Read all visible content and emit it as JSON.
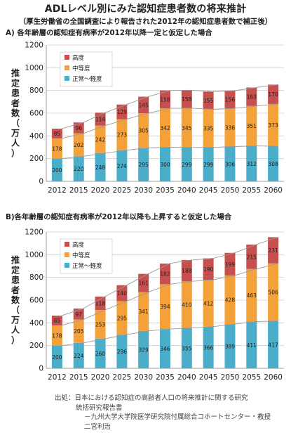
{
  "header": {
    "title": "ADLレベル別にみた認知症患者数の将来推計",
    "subtitle": "（厚生労働省の全国調査により報告された2012年の認知症患者数で補正後）"
  },
  "source": {
    "line1": "出処：日本における認知症の高齢者人口の将来推計に関する研究",
    "line2": "統括研究報告書",
    "line3": "－九州大学大学院医学研究院付属総合コホートセンター・教授",
    "line4": "二宮利治"
  },
  "colors": {
    "mild": "#4aaecb",
    "moderate": "#f5a13a",
    "severe": "#c7504f",
    "grid": "#cfcfcf"
  },
  "chart_data": [
    {
      "type": "bar",
      "stacked": true,
      "section_label": "A) 各年齢層の認知症有病率が2012年以降一定と仮定した場合",
      "ylabel": "推定患者数（万人）",
      "ylim": [
        0,
        1200
      ],
      "yticks": [
        0,
        200,
        400,
        600,
        800,
        1000,
        1200
      ],
      "grid": true,
      "legend_position": "top-left",
      "categories": [
        "2012",
        "2015",
        "2020",
        "2025",
        "2030",
        "2035",
        "2040",
        "2045",
        "2050",
        "2055",
        "2060"
      ],
      "series": [
        {
          "name": "正常～軽度",
          "color": "#4aaecb",
          "values": [
            200,
            220,
            248,
            274,
            295,
            300,
            299,
            299,
            306,
            312,
            308
          ]
        },
        {
          "name": "中等度",
          "color": "#f5a13a",
          "values": [
            178,
            202,
            242,
            273,
            305,
            342,
            345,
            335,
            336,
            351,
            373
          ]
        },
        {
          "name": "高度",
          "color": "#c7504f",
          "values": [
            85,
            96,
            114,
            129,
            145,
            158,
            158,
            155,
            156,
            163,
            170
          ]
        }
      ]
    },
    {
      "type": "bar",
      "stacked": true,
      "section_label": "B)各年齢層の認知症有病率が2012年以降も上昇すると仮定した場合",
      "ylabel": "推定患者数（万人）",
      "ylim": [
        0,
        1200
      ],
      "yticks": [
        0,
        200,
        400,
        600,
        800,
        1000,
        1200
      ],
      "grid": true,
      "legend_position": "top-left",
      "categories": [
        "2012",
        "2015",
        "2020",
        "2025",
        "2030",
        "2035",
        "2040",
        "2045",
        "2050",
        "2055",
        "2060"
      ],
      "series": [
        {
          "name": "正常～軽度",
          "color": "#4aaecb",
          "values": [
            200,
            224,
            260,
            296,
            329,
            346,
            355,
            366,
            389,
            411,
            417
          ]
        },
        {
          "name": "中等度",
          "color": "#f5a13a",
          "values": [
            178,
            205,
            253,
            295,
            341,
            394,
            410,
            412,
            428,
            463,
            506
          ]
        },
        {
          "name": "高度",
          "color": "#c7504f",
          "values": [
            85,
            97,
            118,
            140,
            161,
            182,
            188,
            190,
            199,
            215,
            231
          ]
        }
      ]
    }
  ]
}
